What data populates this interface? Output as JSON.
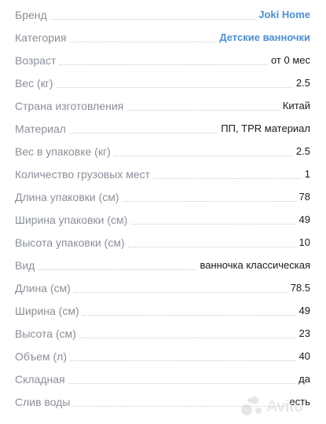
{
  "specs": [
    {
      "label": "Бренд",
      "value": "Joki Home",
      "link": true
    },
    {
      "label": "Категория",
      "value": "Детские ванночки",
      "link": true
    },
    {
      "label": "Возраст",
      "value": "от 0 мес",
      "link": false
    },
    {
      "label": "Вес (кг)",
      "value": "2.5",
      "link": false
    },
    {
      "label": "Страна изготовления",
      "value": "Китай",
      "link": false
    },
    {
      "label": "Материал",
      "value": "ПП, TPR материал",
      "link": false
    },
    {
      "label": "Вес в упаковке (кг)",
      "value": "2.5",
      "link": false
    },
    {
      "label": "Количество грузовых мест",
      "value": "1",
      "link": false
    },
    {
      "label": "Длина упаковки (см)",
      "value": "78",
      "link": false
    },
    {
      "label": "Ширина упаковки (см)",
      "value": "49",
      "link": false
    },
    {
      "label": "Высота упаковки (см)",
      "value": "10",
      "link": false
    },
    {
      "label": "Вид",
      "value": "ванночка классическая",
      "link": false
    },
    {
      "label": "Длина (см)",
      "value": "78.5",
      "link": false
    },
    {
      "label": "Ширина (см)",
      "value": "49",
      "link": false
    },
    {
      "label": "Высота (см)",
      "value": "23",
      "link": false
    },
    {
      "label": "Объем (л)",
      "value": "40",
      "link": false
    },
    {
      "label": "Складная",
      "value": "да",
      "link": false
    },
    {
      "label": "Слив воды",
      "value": "есть",
      "link": false
    }
  ],
  "watermark": {
    "text": "Avito",
    "icon": "avito-logo-icon"
  },
  "colors": {
    "label": "#8a8f98",
    "value": "#1a1a1a",
    "link": "#4a8fd4",
    "dots": "#c7cbd1"
  }
}
